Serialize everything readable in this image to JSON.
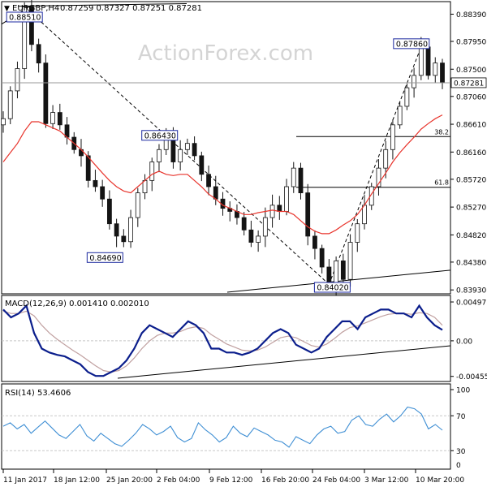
{
  "header": {
    "symbol_label": "EURGBP,H4",
    "ohlc": "0.87259 0.87327 0.87251 0.87281"
  },
  "watermark": "ActionForex.com",
  "colors": {
    "candle": "#141414",
    "ma": "#e8342c",
    "macd": "#0b1e8c",
    "signal": "#c0a0a0",
    "rsi": "#3f8fd4",
    "grid": "#c8c8c8",
    "label_box": "#1c2aa0"
  },
  "chart_data": [
    {
      "type": "candlestick",
      "title": "EURGBP,H4",
      "ylim": [
        0.8388,
        0.8858
      ],
      "y_ticks": [
        "0.88390",
        "0.87950",
        "0.87500",
        "0.87060",
        "0.86610",
        "0.86160",
        "0.85720",
        "0.85270",
        "0.84820",
        "0.84380",
        "0.83930"
      ],
      "current_price": "0.87281",
      "x_tick_labels": [
        "11 Jan 2017",
        "18 Jan 12:00",
        "25 Jan 20:00",
        "2 Feb 04:00",
        "9 Feb 12:00",
        "16 Feb 20:00",
        "24 Feb 04:00",
        "3 Mar 12:00",
        "10 Mar 20:00"
      ],
      "annotations": [
        {
          "label": "0.88510",
          "value": 0.8851
        },
        {
          "label": "0.84690",
          "value": 0.8469
        },
        {
          "label": "0.86430",
          "value": 0.8643
        },
        {
          "label": "0.84020",
          "value": 0.8402
        },
        {
          "label": "0.87860",
          "value": 0.8786
        }
      ],
      "fib_levels": [
        {
          "label": "38.2",
          "value": 0.8641
        },
        {
          "label": "61.8",
          "value": 0.8559
        }
      ],
      "series": [
        {
          "name": "close",
          "values": [
            0.867,
            0.8715,
            0.8751,
            0.8851,
            0.879,
            0.876,
            0.8662,
            0.868,
            0.866,
            0.864,
            0.862,
            0.861,
            0.857,
            0.856,
            0.854,
            0.85,
            0.848,
            0.8471,
            0.851,
            0.855,
            0.857,
            0.86,
            0.862,
            0.8643,
            0.86,
            0.862,
            0.863,
            0.861,
            0.858,
            0.856,
            0.854,
            0.8525,
            0.852,
            0.851,
            0.849,
            0.847,
            0.848,
            0.851,
            0.853,
            0.852,
            0.856,
            0.859,
            0.855,
            0.848,
            0.846,
            0.843,
            0.8402,
            0.844,
            0.841,
            0.847,
            0.85,
            0.853,
            0.856,
            0.859,
            0.862,
            0.866,
            0.869,
            0.872,
            0.874,
            0.8786,
            0.874,
            0.876,
            0.8728
          ]
        },
        {
          "name": "ma",
          "values": [
            0.86,
            0.8615,
            0.863,
            0.865,
            0.8665,
            0.8665,
            0.866,
            0.8655,
            0.865,
            0.864,
            0.863,
            0.862,
            0.8608,
            0.8595,
            0.8582,
            0.857,
            0.856,
            0.8553,
            0.855,
            0.856,
            0.857,
            0.858,
            0.8585,
            0.858,
            0.8578,
            0.858,
            0.858,
            0.857,
            0.856,
            0.8548,
            0.854,
            0.853,
            0.8525,
            0.852,
            0.8515,
            0.8515,
            0.8518,
            0.852,
            0.8522,
            0.852,
            0.852,
            0.8515,
            0.8505,
            0.8495,
            0.8488,
            0.8484,
            0.8484,
            0.849,
            0.8498,
            0.8505,
            0.8515,
            0.853,
            0.8548,
            0.8565,
            0.8582,
            0.86,
            0.8615,
            0.8628,
            0.864,
            0.8653,
            0.8662,
            0.867,
            0.8676
          ]
        }
      ]
    },
    {
      "type": "line",
      "title": "MACD(12,26,9) 0.001410 0.002010",
      "ylim": [
        -0.005,
        0.0055
      ],
      "y_ticks": [
        "0.004977",
        "0.00",
        "-0.004555"
      ],
      "series": [
        {
          "name": "macd",
          "values": [
            0.004,
            0.003,
            0.0035,
            0.0045,
            0.001,
            -0.001,
            -0.0015,
            -0.0018,
            -0.002,
            -0.0025,
            -0.003,
            -0.004,
            -0.0045,
            -0.0045,
            -0.004,
            -0.0035,
            -0.0025,
            -0.001,
            0.001,
            0.002,
            0.0015,
            0.001,
            0.0005,
            0.0015,
            0.0025,
            0.002,
            0.001,
            -0.001,
            -0.001,
            -0.0015,
            -0.0015,
            -0.0018,
            -0.0015,
            -0.001,
            0.0,
            0.001,
            0.0015,
            0.001,
            -0.0005,
            -0.001,
            -0.0015,
            -0.001,
            0.0005,
            0.0015,
            0.0025,
            0.0025,
            0.0015,
            0.003,
            0.0035,
            0.004,
            0.004,
            0.0035,
            0.0035,
            0.003,
            0.0045,
            0.003,
            0.002,
            0.0014
          ]
        },
        {
          "name": "signal",
          "values": [
            0.0038,
            0.0035,
            0.0035,
            0.0038,
            0.0032,
            0.002,
            0.001,
            0.0002,
            -0.0005,
            -0.0012,
            -0.0018,
            -0.0025,
            -0.0032,
            -0.0038,
            -0.004,
            -0.0038,
            -0.0032,
            -0.0022,
            -0.001,
            0.0,
            0.0007,
            0.001,
            0.001,
            0.0012,
            0.0016,
            0.0018,
            0.0016,
            0.0008,
            0.0002,
            -0.0004,
            -0.0008,
            -0.0012,
            -0.0013,
            -0.0012,
            -0.0008,
            -0.0002,
            0.0004,
            0.0006,
            0.0004,
            -0.0001,
            -0.0006,
            -0.0008,
            -0.0004,
            0.0003,
            0.0011,
            0.0017,
            0.0019,
            0.0023,
            0.0027,
            0.0031,
            0.0034,
            0.0035,
            0.0035,
            0.0034,
            0.0036,
            0.0035,
            0.003,
            0.002
          ]
        }
      ]
    },
    {
      "type": "line",
      "title": "RSI(14) 53.4606",
      "ylim": [
        0,
        100
      ],
      "y_ticks": [
        "100",
        "70",
        "30",
        "0"
      ],
      "series": [
        {
          "name": "rsi",
          "values": [
            58,
            62,
            55,
            60,
            50,
            57,
            64,
            56,
            48,
            44,
            52,
            60,
            47,
            41,
            50,
            44,
            38,
            35,
            42,
            50,
            60,
            55,
            48,
            52,
            58,
            45,
            40,
            44,
            62,
            54,
            48,
            40,
            45,
            58,
            50,
            46,
            56,
            52,
            48,
            42,
            40,
            34,
            46,
            42,
            38,
            48,
            55,
            58,
            50,
            52,
            65,
            70,
            60,
            58,
            66,
            72,
            63,
            70,
            80,
            78,
            72,
            55,
            60,
            53.5
          ]
        }
      ]
    }
  ]
}
